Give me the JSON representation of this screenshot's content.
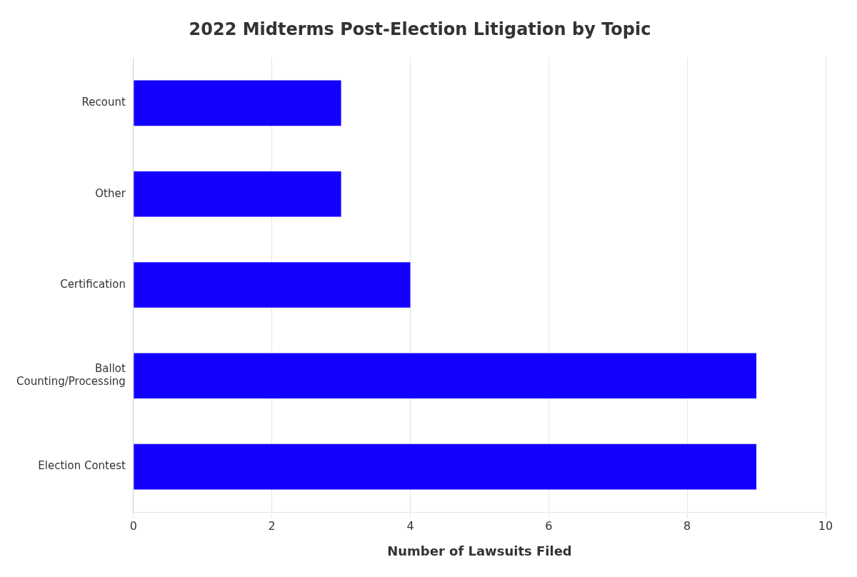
{
  "chart_data": {
    "type": "bar",
    "orientation": "horizontal",
    "title": "2022 Midterms Post-Election Litigation by Topic",
    "xlabel": "Number of Lawsuits Filed",
    "categories": [
      "Recount",
      "Other",
      "Certification",
      "Ballot\nCounting/Processing",
      "Election Contest"
    ],
    "values": [
      3,
      3,
      4,
      9,
      9
    ],
    "color": "#1400ff",
    "xlim": [
      0,
      10
    ],
    "xticks": [
      0,
      2,
      4,
      6,
      8,
      10
    ],
    "grid": true
  }
}
